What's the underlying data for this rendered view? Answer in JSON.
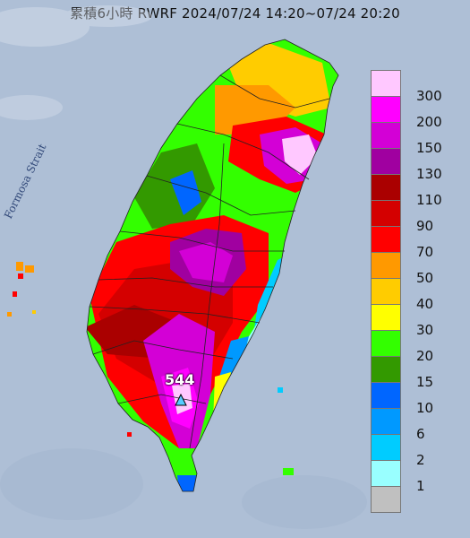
{
  "title": "累積6小時 RWRF 2024/07/24 14:20~07/24 20:20",
  "map": {
    "sea_label": "Formosa Strait",
    "max_value_label": "544",
    "max_marker_icon": "triangle-station-marker-icon"
  },
  "legend": [
    {
      "label": "300",
      "color": "#ffc8ff"
    },
    {
      "label": "200",
      "color": "#ff00ff"
    },
    {
      "label": "150",
      "color": "#d300d6"
    },
    {
      "label": "130",
      "color": "#a000a0"
    },
    {
      "label": "110",
      "color": "#aa0000"
    },
    {
      "label": "90",
      "color": "#d40000"
    },
    {
      "label": "70",
      "color": "#ff0000"
    },
    {
      "label": "50",
      "color": "#ff9900"
    },
    {
      "label": "40",
      "color": "#ffcc00"
    },
    {
      "label": "30",
      "color": "#ffff00"
    },
    {
      "label": "20",
      "color": "#33ff00"
    },
    {
      "label": "15",
      "color": "#339900"
    },
    {
      "label": "10",
      "color": "#0066ff"
    },
    {
      "label": "6",
      "color": "#0099ff"
    },
    {
      "label": "2",
      "color": "#00ccff"
    },
    {
      "label": "1",
      "color": "#99ffff"
    },
    {
      "label": "",
      "color": "#c0c0c0"
    }
  ]
}
